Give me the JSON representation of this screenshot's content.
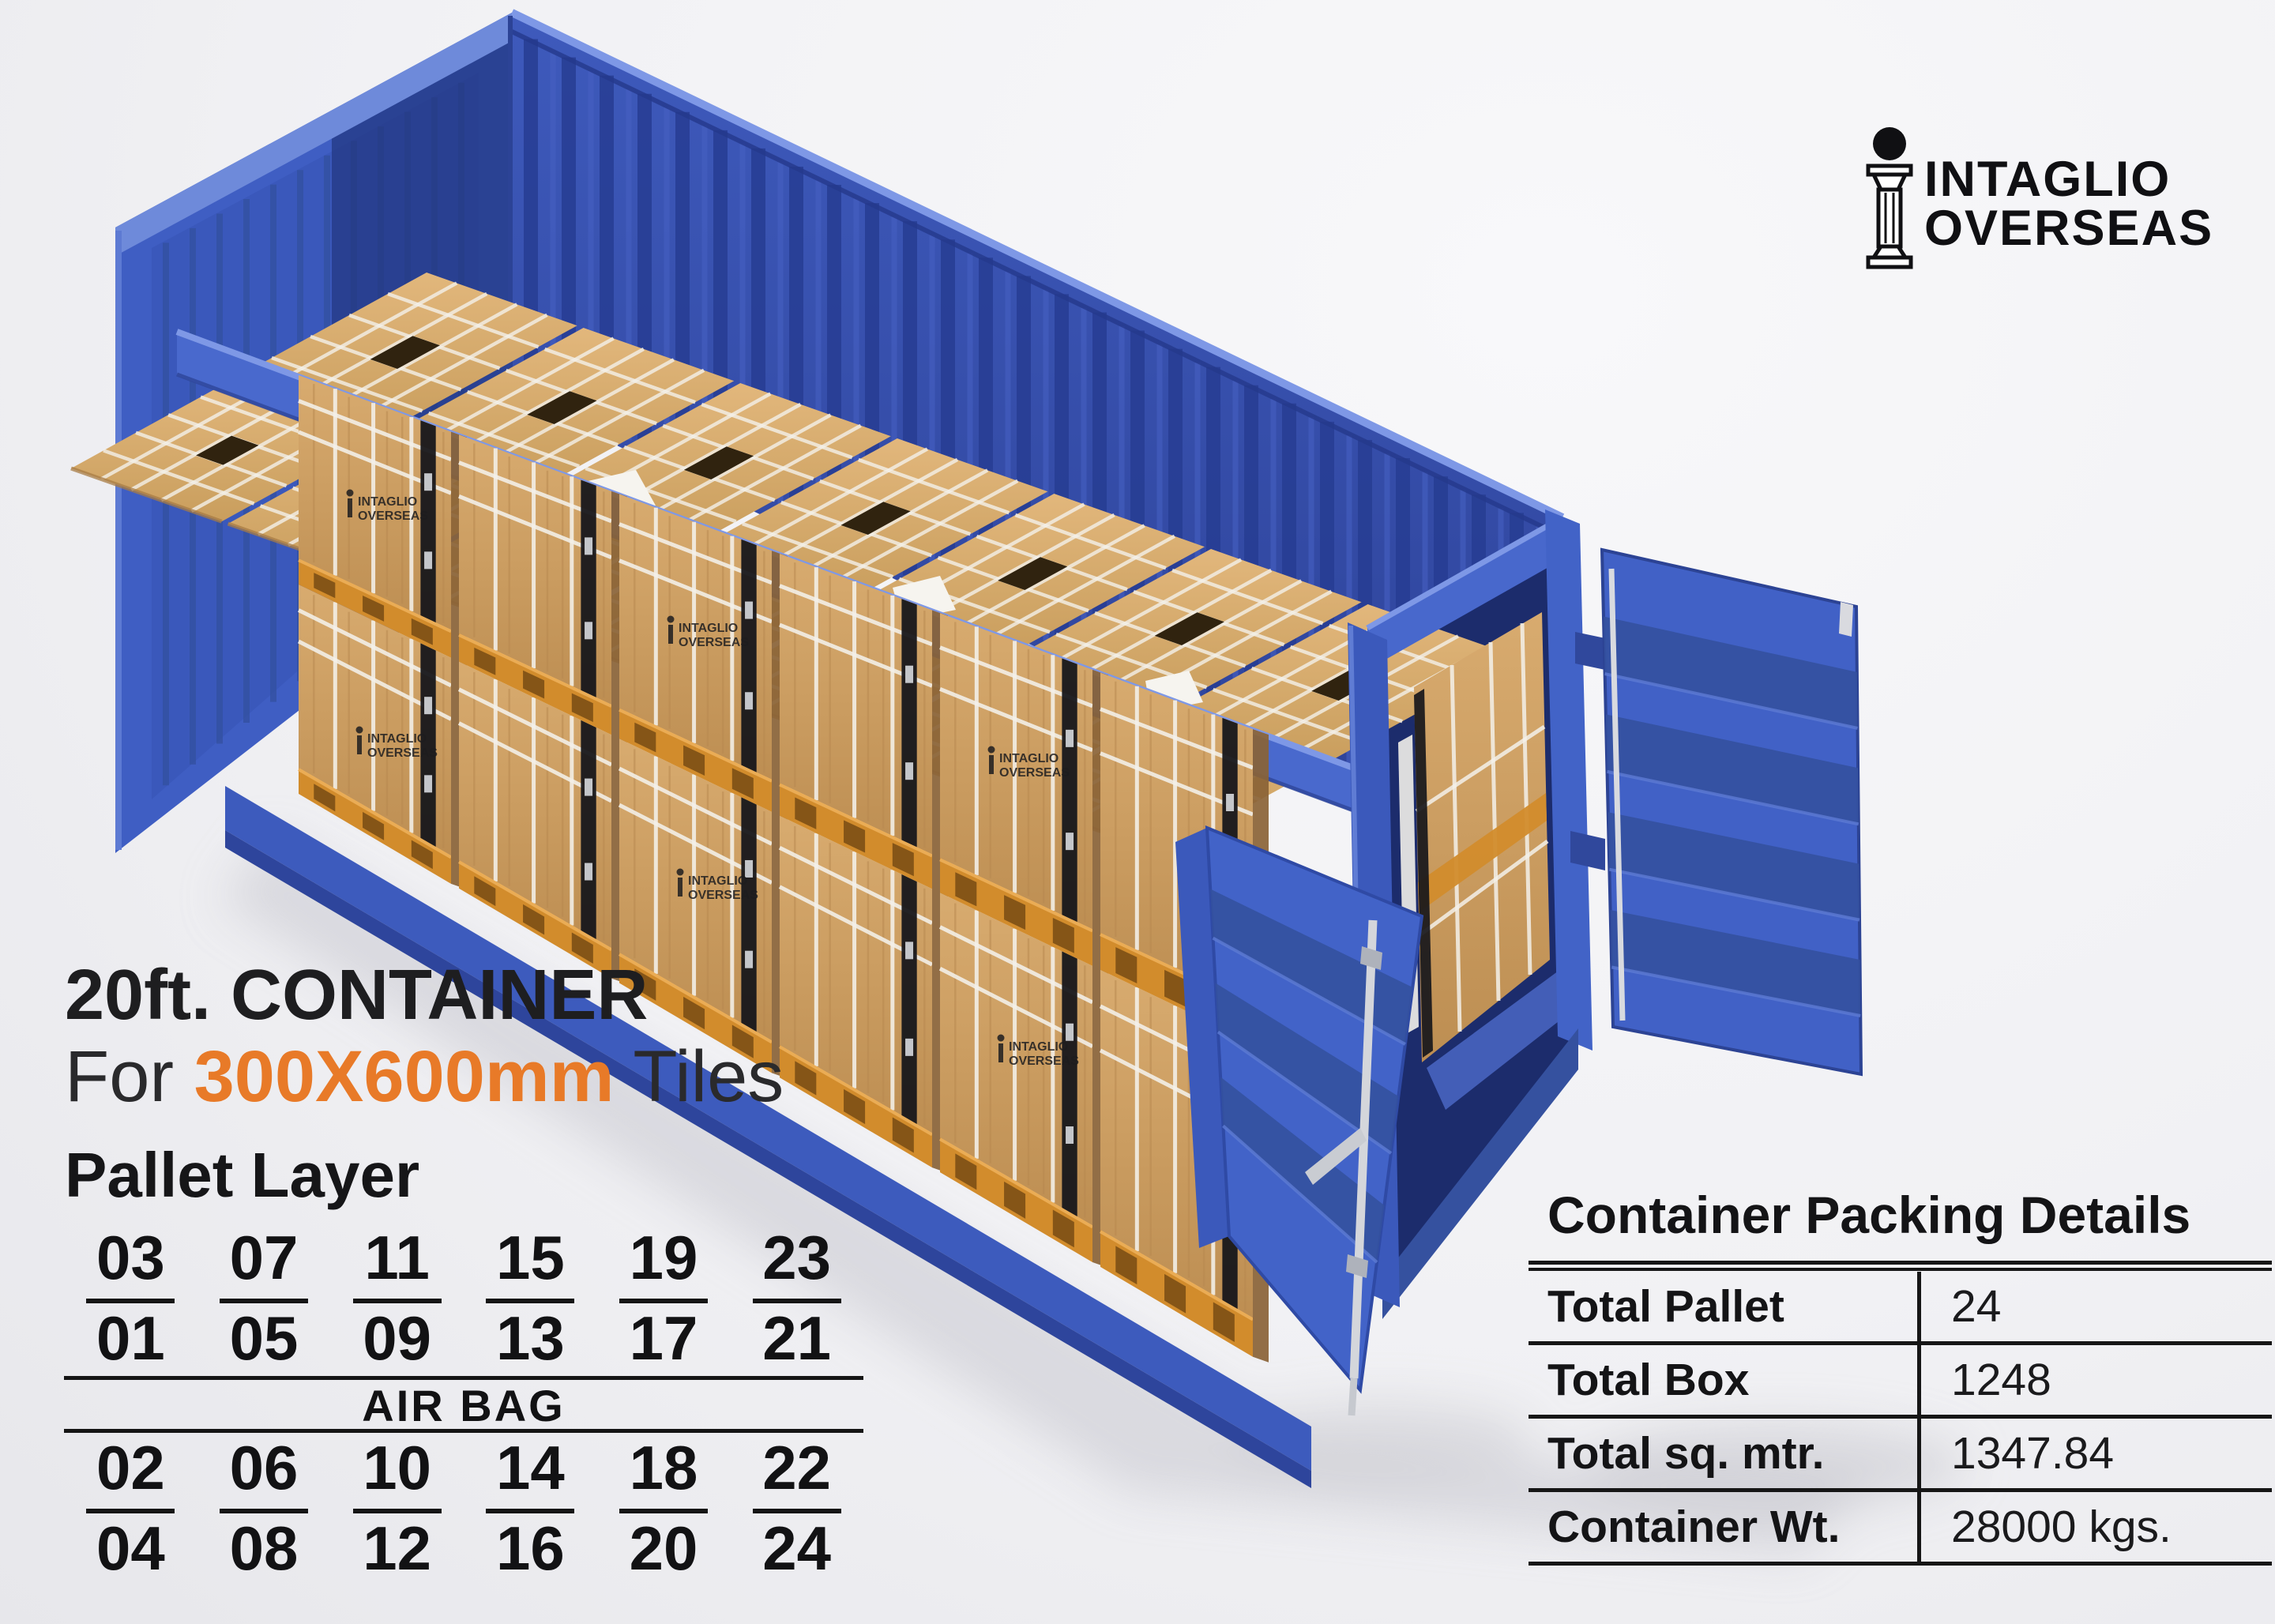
{
  "brand": {
    "line1": "INTAGLIO",
    "line2": "OVERSEAS"
  },
  "title": {
    "line1": "20ft. CONTAINER",
    "line2_prefix": "For ",
    "line2_highlight": "300X600mm",
    "line2_suffix": " Tiles"
  },
  "pallet_layer": {
    "heading": "Pallet Layer",
    "top_rows": [
      [
        "03",
        "07",
        "11",
        "15",
        "19",
        "23"
      ],
      [
        "01",
        "05",
        "09",
        "13",
        "17",
        "21"
      ]
    ],
    "divider_label": "AIR BAG",
    "bottom_rows": [
      [
        "02",
        "06",
        "10",
        "14",
        "18",
        "22"
      ],
      [
        "04",
        "08",
        "12",
        "16",
        "20",
        "24"
      ]
    ]
  },
  "packing_details": {
    "title": "Container Packing Details",
    "rows": [
      {
        "label": "Total Pallet",
        "value": "24"
      },
      {
        "label": "Total Box",
        "value": "1248"
      },
      {
        "label": "Total sq. mtr.",
        "value": "1347.84"
      },
      {
        "label": "Container Wt.",
        "value": "28000 kgs."
      }
    ]
  },
  "colors": {
    "accent_orange": "#e87a28",
    "container_blue": "#4161c6",
    "container_blue_light": "#6e8ada",
    "container_blue_dark": "#2c4397",
    "corrugation_dark": "#273d93",
    "corrugation_light": "#4660c2",
    "door_rib": "#34519e",
    "door_rib_light": "#5d7bd4",
    "wood": "#cfa166",
    "wood_dark": "#8a6336",
    "pallet_orange": "#d28c2c",
    "pallet_notch": "#7c4f15",
    "strap_white": "#f4f1ea",
    "black_strip": "#17171b",
    "silver": "#d6d8dd",
    "text_black": "#151515",
    "shadow": "#c9c9d0"
  }
}
